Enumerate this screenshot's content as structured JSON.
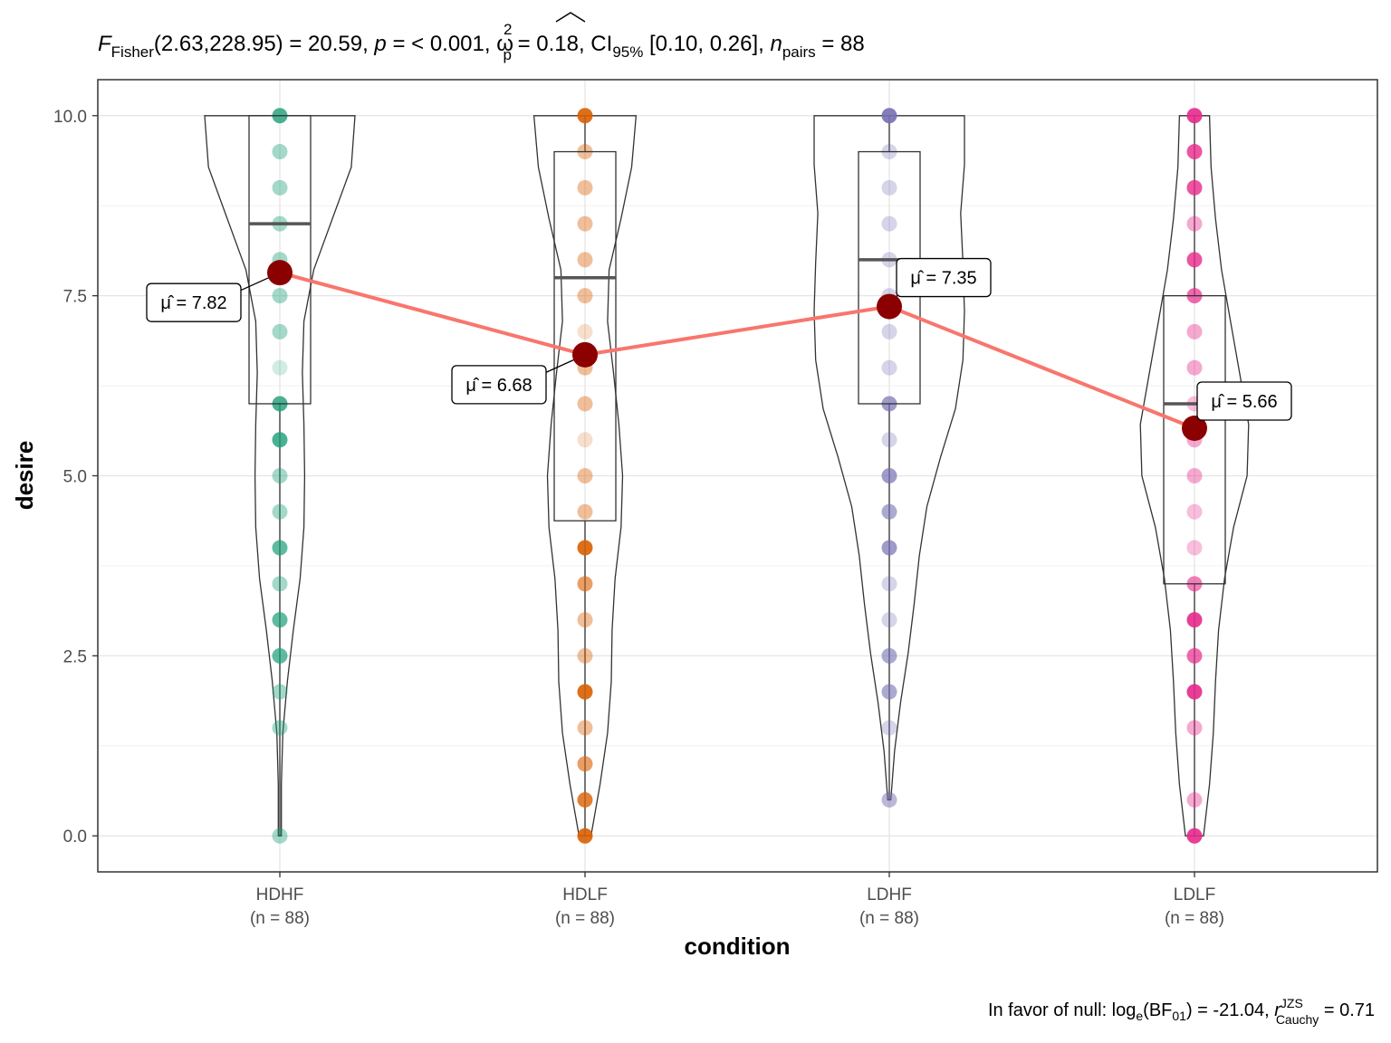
{
  "chart_data": {
    "type": "violin-box-dot",
    "title": {
      "F_label": "F",
      "F_sub": "Fisher",
      "F_args": "(2.63,228.95) = 20.59, ",
      "p_label": "p",
      "p_value": " = < 0.001, ",
      "omega_label": "ω",
      "omega_sup": "2",
      "omega_sub": "p",
      "omega_value": " = 0.18, CI",
      "ci_sub": "95%",
      "ci_value": " [0.10, 0.26], ",
      "n_label": "n",
      "n_sub": "pairs",
      "n_value": " = 88"
    },
    "caption": {
      "prefix": "In favor of null: log",
      "log_sub": "e",
      "bf_open": "(BF",
      "bf_sub": "01",
      "bf_value": ") = -21.04, ",
      "r_label": "r",
      "r_sup": "JZS",
      "r_sub": "Cauchy",
      "r_value": " = 0.71"
    },
    "xlabel": "condition",
    "ylabel": "desire",
    "ylim": [
      -0.5,
      10.5
    ],
    "y_ticks": [
      "0.0",
      "2.5",
      "5.0",
      "7.5",
      "10.0"
    ],
    "grid": true,
    "categories": [
      "HDHF",
      "HDLF",
      "LDHF",
      "LDLF"
    ],
    "category_n": [
      "(n = 88)",
      "(n = 88)",
      "(n = 88)",
      "(n = 88)"
    ],
    "colors": [
      "#1b9e77",
      "#d95f02",
      "#7570b3",
      "#e7298a"
    ],
    "mean_color": "#8b0000",
    "mean_line_color": "#f8766d",
    "means": [
      7.82,
      6.68,
      7.35,
      5.66
    ],
    "mean_labels": [
      "7.82",
      "6.68",
      "7.35",
      "5.66"
    ],
    "mean_symbol": "μ̂ = ",
    "boxes": [
      {
        "q1": 6.0,
        "median": 8.5,
        "q3": 10.0,
        "whisker_low": 0.0,
        "whisker_high": 10.0
      },
      {
        "q1": 4.375,
        "median": 7.75,
        "q3": 9.5,
        "whisker_low": 0.0,
        "whisker_high": 10.0
      },
      {
        "q1": 6.0,
        "median": 8.0,
        "q3": 9.5,
        "whisker_low": 0.5,
        "whisker_high": 10.0
      },
      {
        "q1": 3.5,
        "median": 6.0,
        "q3": 7.5,
        "whisker_low": 0.0,
        "whisker_high": 10.0
      }
    ],
    "points": [
      [
        0,
        1.5,
        2,
        2.5,
        3,
        3.5,
        4,
        4.5,
        5,
        5.5,
        6,
        6.5,
        7,
        7.5,
        8,
        8.5,
        9,
        9.5,
        10
      ],
      [
        0,
        0.5,
        1,
        1.5,
        2,
        2.5,
        3,
        3.5,
        4,
        4.5,
        5,
        5.5,
        6,
        6.5,
        7,
        7.5,
        8,
        8.5,
        9,
        9.5,
        10
      ],
      [
        0.5,
        1.5,
        2,
        2.5,
        3,
        3.5,
        4,
        4.5,
        5,
        5.5,
        6,
        6.5,
        7,
        7.5,
        8,
        8.5,
        9,
        9.5,
        10
      ],
      [
        0,
        0.5,
        1.5,
        2,
        2.5,
        3,
        3.5,
        4,
        4.5,
        5,
        5.5,
        6,
        6.5,
        7,
        7.5,
        8,
        8.5,
        9,
        9.5,
        10
      ]
    ],
    "point_opacity": [
      [
        0.4,
        0.4,
        0.4,
        0.7,
        0.7,
        0.4,
        0.7,
        0.4,
        0.4,
        0.8,
        0.8,
        0.2,
        0.4,
        0.4,
        0.4,
        0.4,
        0.4,
        0.4,
        0.8
      ],
      [
        0.9,
        0.8,
        0.6,
        0.4,
        0.9,
        0.4,
        0.4,
        0.6,
        0.9,
        0.4,
        0.4,
        0.2,
        0.4,
        0.4,
        0.2,
        0.4,
        0.4,
        0.4,
        0.4,
        0.4,
        0.9
      ],
      [
        0.5,
        0.3,
        0.6,
        0.6,
        0.3,
        0.3,
        0.7,
        0.6,
        0.7,
        0.3,
        0.7,
        0.3,
        0.3,
        0.3,
        0.3,
        0.3,
        0.3,
        0.3,
        0.9
      ],
      [
        0.9,
        0.4,
        0.4,
        0.9,
        0.7,
        0.9,
        0.6,
        0.3,
        0.3,
        0.4,
        0.4,
        0.3,
        0.4,
        0.4,
        0.7,
        0.8,
        0.4,
        0.8,
        0.8,
        0.9
      ]
    ],
    "violin_density": [
      [
        0.02,
        0.02,
        0.04,
        0.1,
        0.18,
        0.27,
        0.32,
        0.33,
        0.32,
        0.3,
        0.32,
        0.45,
        0.7,
        0.95,
        1.0
      ],
      [
        0.08,
        0.2,
        0.3,
        0.35,
        0.36,
        0.4,
        0.48,
        0.5,
        0.45,
        0.38,
        0.3,
        0.32,
        0.48,
        0.62,
        0.68
      ],
      [
        0.02,
        0.07,
        0.15,
        0.25,
        0.33,
        0.4,
        0.5,
        0.68,
        0.88,
        0.98,
        1.0,
        0.98,
        0.95,
        1.0,
        1.0
      ],
      [
        0.12,
        0.2,
        0.25,
        0.28,
        0.32,
        0.4,
        0.52,
        0.7,
        0.72,
        0.6,
        0.48,
        0.36,
        0.28,
        0.22,
        0.2
      ]
    ]
  }
}
